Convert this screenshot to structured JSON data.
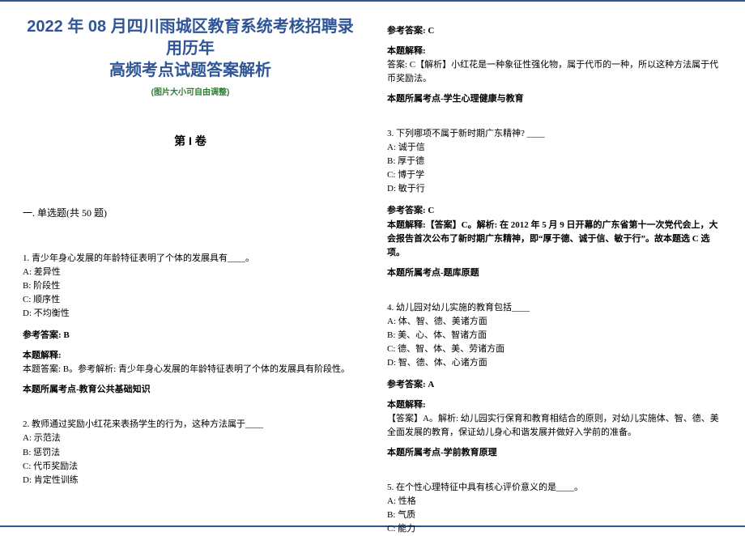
{
  "colors": {
    "rule": "#2f5597",
    "title": "#2f5597",
    "subtitle": "#2e7d32",
    "text": "#000000",
    "background": "#ffffff"
  },
  "fonts": {
    "title_family": "Microsoft YaHei / SimHei",
    "title_size_pt": 20,
    "body_family": "SimSun",
    "body_size_pt": 11
  },
  "header": {
    "title_line1": "2022 年 08 月四川雨城区教育系统考核招聘录用历年",
    "title_line2": "高频考点试题答案解析",
    "subtitle": "(图片大小可自由调整)"
  },
  "volume_label": "第 I 卷",
  "section_label": "一. 单选题(共 50 题)",
  "labels": {
    "ref_answer": "参考答案:",
    "explain": "本题解释:",
    "topic_prefix": "本题所属考点-"
  },
  "questions": [
    {
      "stem": "1. 青少年身心发展的年龄特征表明了个体的发展具有____。",
      "options": [
        "A: 差异性",
        "B: 阶段性",
        "C: 顺序性",
        "D: 不均衡性"
      ],
      "answer": "B",
      "explain": "本题答案: B。参考解析: 青少年身心发展的年龄特征表明了个体的发展具有阶段性。",
      "topic": "教育公共基础知识"
    },
    {
      "stem": "2. 教师通过奖励小红花来表扬学生的行为，这种方法属于____",
      "options": [
        "A: 示范法",
        "B: 惩罚法",
        "C: 代币奖励法",
        "D: 肯定性训练"
      ],
      "answer": "C",
      "explain": "答案: C【解析】小红花是一种象征性强化物，属于代币的一种，所以这种方法属于代币奖励法。",
      "topic": "学生心理健康与教育"
    },
    {
      "stem": "3. 下列哪项不属于新时期广东精神? ____",
      "options": [
        "A: 诚于信",
        "B: 厚于德",
        "C: 博于学",
        "D: 敏于行"
      ],
      "answer": "C",
      "explain": "本题解释:【答案】C。解析: 在 2012 年 5 月 9 日开幕的广东省第十一次党代会上，大会报告首次公布了新时期广东精神，即“厚于德、诚于信、敏于行”。故本题选 C 选项。",
      "topic": "题库原题"
    },
    {
      "stem": "4. 幼儿园对幼儿实施的教育包括____",
      "options": [
        "A: 体、智、德、美诸方面",
        "B: 美、心、体、智诸方面",
        "C: 德、智、体、美、劳诸方面",
        "D: 智、德、体、心诸方面"
      ],
      "answer": "A",
      "explain": "【答案】A。解析: 幼儿园实行保育和教育相结合的原则，对幼儿实施体、智、德、美全面发展的教育，保证幼儿身心和谐发展并做好入学前的准备。",
      "topic": "学前教育原理"
    },
    {
      "stem": "5. 在个性心理特征中具有核心评价意义的是____。",
      "options": [
        "A: 性格",
        "B: 气质",
        "C: 能力"
      ],
      "answer": "",
      "explain": "",
      "topic": ""
    }
  ]
}
